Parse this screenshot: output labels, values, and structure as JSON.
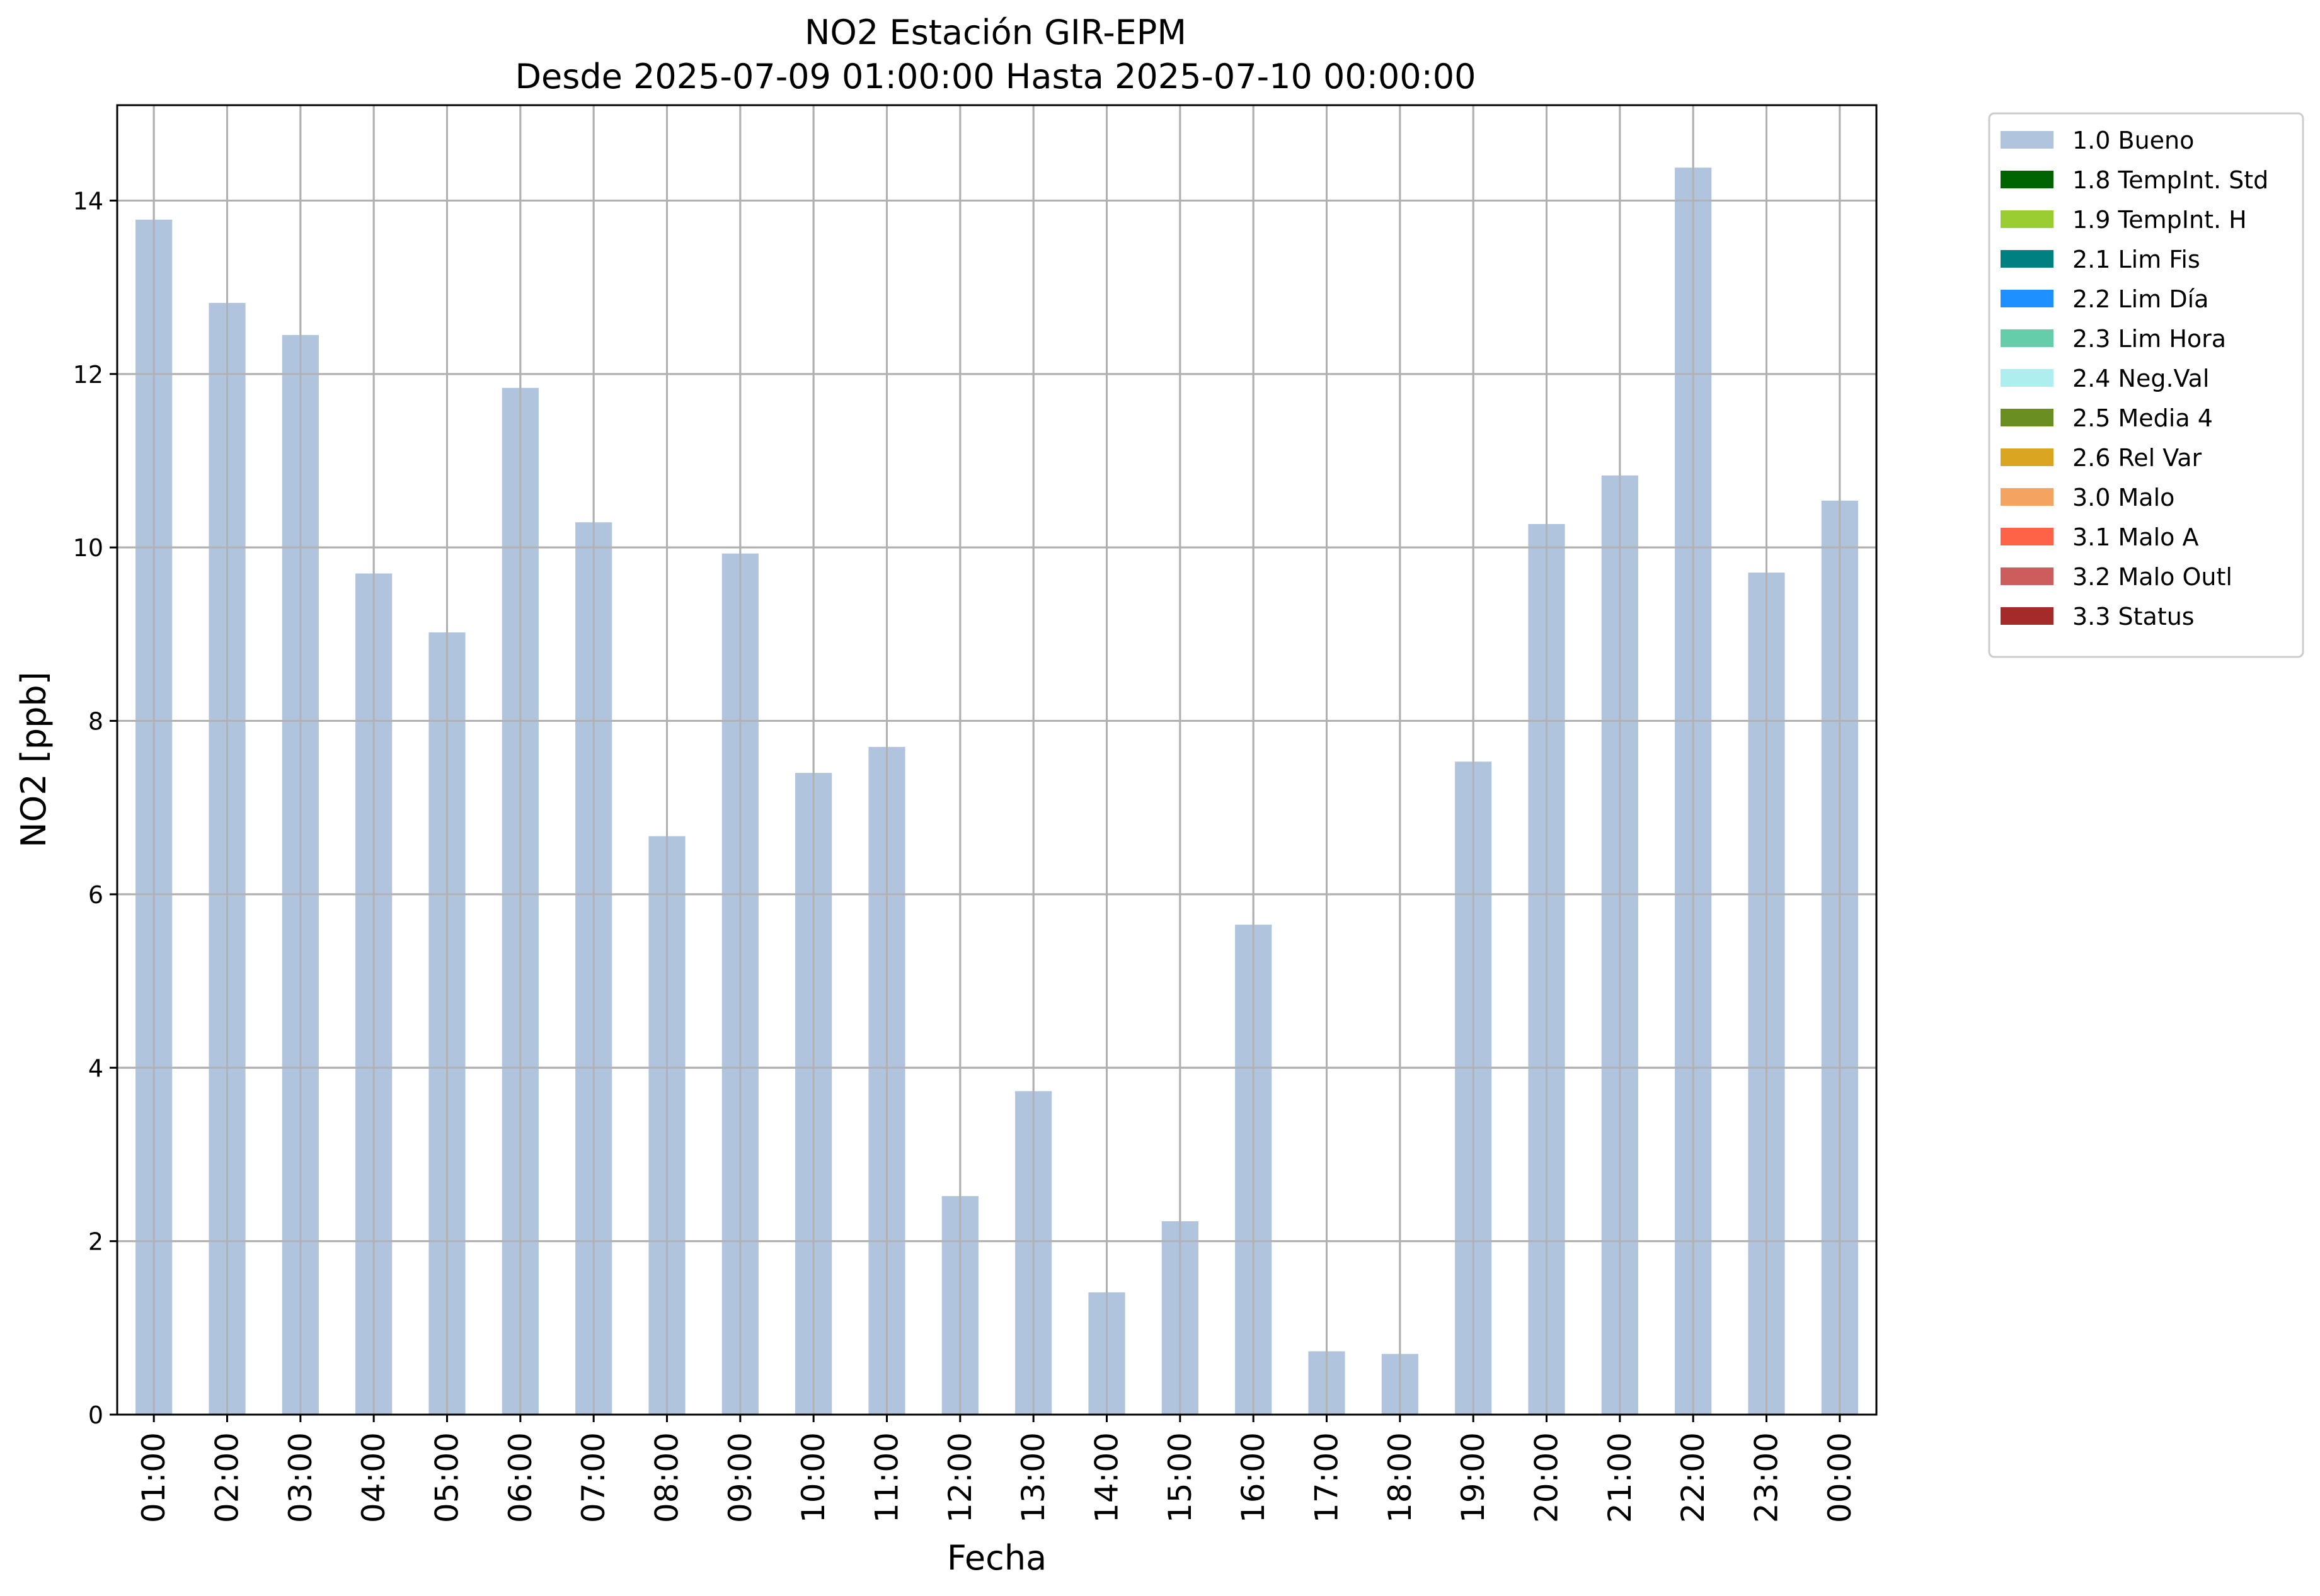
{
  "chart_data": {
    "type": "bar",
    "title": "NO2 Estación GIR-EPM",
    "subtitle": "Desde 2025-07-09 01:00:00 Hasta 2025-07-10 00:00:00",
    "xlabel": "Fecha",
    "ylabel": "NO2 [ppb]",
    "ylim": [
      0,
      15.1
    ],
    "yticks": [
      0,
      2,
      4,
      6,
      8,
      10,
      12,
      14
    ],
    "grid": true,
    "legend_position": "outside-right-top",
    "categories": [
      "01:00",
      "02:00",
      "03:00",
      "04:00",
      "05:00",
      "06:00",
      "07:00",
      "08:00",
      "09:00",
      "10:00",
      "11:00",
      "12:00",
      "13:00",
      "14:00",
      "15:00",
      "16:00",
      "17:00",
      "18:00",
      "19:00",
      "20:00",
      "21:00",
      "22:00",
      "23:00",
      "00:00"
    ],
    "series": [
      {
        "name": "1.0 Bueno",
        "color": "#b0c4de",
        "values": [
          13.78,
          12.82,
          12.45,
          9.7,
          9.02,
          11.84,
          10.29,
          6.67,
          9.93,
          7.4,
          7.7,
          2.52,
          3.73,
          1.41,
          2.23,
          5.65,
          0.73,
          0.7,
          7.53,
          10.27,
          10.83,
          14.38,
          9.71,
          10.54
        ]
      }
    ],
    "legend": [
      {
        "label": "1.0 Bueno",
        "color": "#b0c4de"
      },
      {
        "label": "1.8 TempInt. Std",
        "color": "#006400"
      },
      {
        "label": "1.9 TempInt. H",
        "color": "#9acd32"
      },
      {
        "label": "2.1 Lim Fis",
        "color": "#008080"
      },
      {
        "label": "2.2 Lim Día",
        "color": "#1e90ff"
      },
      {
        "label": "2.3 Lim Hora",
        "color": "#66cdaa"
      },
      {
        "label": "2.4 Neg.Val",
        "color": "#afeeee"
      },
      {
        "label": "2.5 Media 4",
        "color": "#6b8e23"
      },
      {
        "label": "2.6 Rel Var",
        "color": "#daa520"
      },
      {
        "label": "3.0 Malo",
        "color": "#f4a460"
      },
      {
        "label": "3.1 Malo A",
        "color": "#ff6347"
      },
      {
        "label": "3.2 Malo Outl",
        "color": "#cd5c5c"
      },
      {
        "label": "3.3 Status",
        "color": "#a52a2a"
      }
    ]
  }
}
